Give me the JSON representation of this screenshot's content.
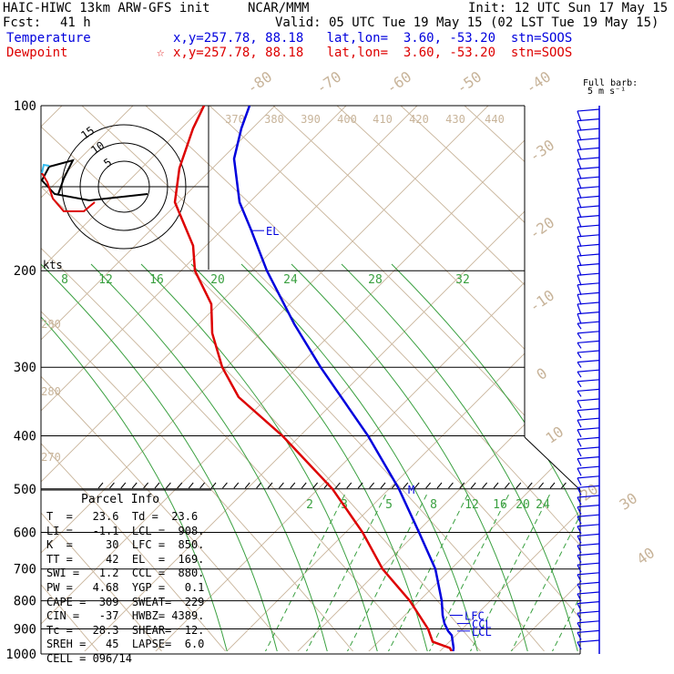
{
  "header": {
    "model": "HAIC-HIWC 13km ARW-GFS init",
    "org": "NCAR/MMM",
    "init": "Init: 12 UTC Sun 17 May 15",
    "fcst_label": "Fcst:",
    "fcst_value": "41 h",
    "valid": "Valid: 05 UTC Tue 19 May 15 (02 LST Tue 19 May 15)",
    "temp_label": "Temperature",
    "temp_info": "x,y=257.78, 88.18   lat,lon=  3.60, -53.20  stn=SOOS",
    "dew_label": "Dewpoint",
    "dew_info": "x,y=257.78, 88.18   lat,lon=  3.60, -53.20  stn=SOOS",
    "star": "☆"
  },
  "barb_legend": {
    "line1": "Full barb:",
    "line2": "5 m s⁻¹"
  },
  "hodograph": {
    "units": "kts",
    "rings": [
      "5",
      "10",
      "15"
    ]
  },
  "parcel": {
    "title": "Parcel Info",
    "rows": [
      "T  =   23.6  Td =  23.6",
      "LI =   -1.1  LCL =  908.",
      "K  =     30  LFC =  850.",
      "TT =     42  EL  =  169.",
      "SWI =   1.2  CCL =  880.",
      "PW =   4.68  YGP =   0.1",
      "CAPE =  309  SWEAT=  229",
      "CIN =   -37  HWBZ= 4389.",
      "Tc =   28.3  SHEAR=  12.",
      "SREH =   45  LAPSE=  6.0",
      "CELL = 096/14"
    ]
  },
  "chart_data": {
    "type": "line",
    "title": "HAIC-HIWC 13km ARW-GFS init",
    "y_axis": {
      "scale": "log-pressure",
      "units": "hPa",
      "range": [
        1000,
        100
      ],
      "ticks": [
        "100",
        "200",
        "300",
        "400",
        "500",
        "600",
        "700",
        "800",
        "900",
        "1000"
      ]
    },
    "isotherm_labels": [
      "-80",
      "-70",
      "-60",
      "-50",
      "-40",
      "-30",
      "-20",
      "-10",
      "0",
      "10",
      "20",
      "30",
      "40"
    ],
    "mixing_ratio_labels_top": [
      "8",
      "12",
      "16",
      "20",
      "24",
      "28",
      "32"
    ],
    "mixing_ratio_labels_mid": [
      "2",
      "3",
      "5",
      "8",
      "12",
      "16",
      "20",
      "24"
    ],
    "theta_labels": [
      "370",
      "380",
      "390",
      "400",
      "410",
      "420",
      "430",
      "440",
      "280",
      "280",
      "270"
    ],
    "levels": [
      "LFC",
      "CCL",
      "LCL",
      "EL",
      "M"
    ],
    "series": [
      {
        "name": "Temperature",
        "color": "#0000dd",
        "points": [
          {
            "p": 1000,
            "x": 497
          },
          {
            "p": 975,
            "x": 498
          },
          {
            "p": 950,
            "x": 497
          },
          {
            "p": 925,
            "x": 496
          },
          {
            "p": 908,
            "x": 492
          },
          {
            "p": 880,
            "x": 488
          },
          {
            "p": 850,
            "x": 486
          },
          {
            "p": 800,
            "x": 485
          },
          {
            "p": 700,
            "x": 478
          },
          {
            "p": 600,
            "x": 460
          },
          {
            "p": 500,
            "x": 438
          },
          {
            "p": 400,
            "x": 404
          },
          {
            "p": 300,
            "x": 352
          },
          {
            "p": 250,
            "x": 323
          },
          {
            "p": 200,
            "x": 293
          },
          {
            "p": 169,
            "x": 276
          },
          {
            "p": 150,
            "x": 263
          },
          {
            "p": 125,
            "x": 257
          },
          {
            "p": 110,
            "x": 265
          },
          {
            "p": 100,
            "x": 274
          }
        ]
      },
      {
        "name": "Dewpoint",
        "color": "#dd0000",
        "points": [
          {
            "p": 1000,
            "x": 497
          },
          {
            "p": 975,
            "x": 494
          },
          {
            "p": 950,
            "x": 475
          },
          {
            "p": 900,
            "x": 470
          },
          {
            "p": 800,
            "x": 450
          },
          {
            "p": 700,
            "x": 420
          },
          {
            "p": 600,
            "x": 398
          },
          {
            "p": 500,
            "x": 365
          },
          {
            "p": 400,
            "x": 310
          },
          {
            "p": 340,
            "x": 262
          },
          {
            "p": 300,
            "x": 244
          },
          {
            "p": 260,
            "x": 233
          },
          {
            "p": 230,
            "x": 232
          },
          {
            "p": 200,
            "x": 214
          },
          {
            "p": 180,
            "x": 212
          },
          {
            "p": 150,
            "x": 192
          },
          {
            "p": 130,
            "x": 197
          },
          {
            "p": 110,
            "x": 212
          },
          {
            "p": 100,
            "x": 224
          }
        ]
      }
    ]
  }
}
